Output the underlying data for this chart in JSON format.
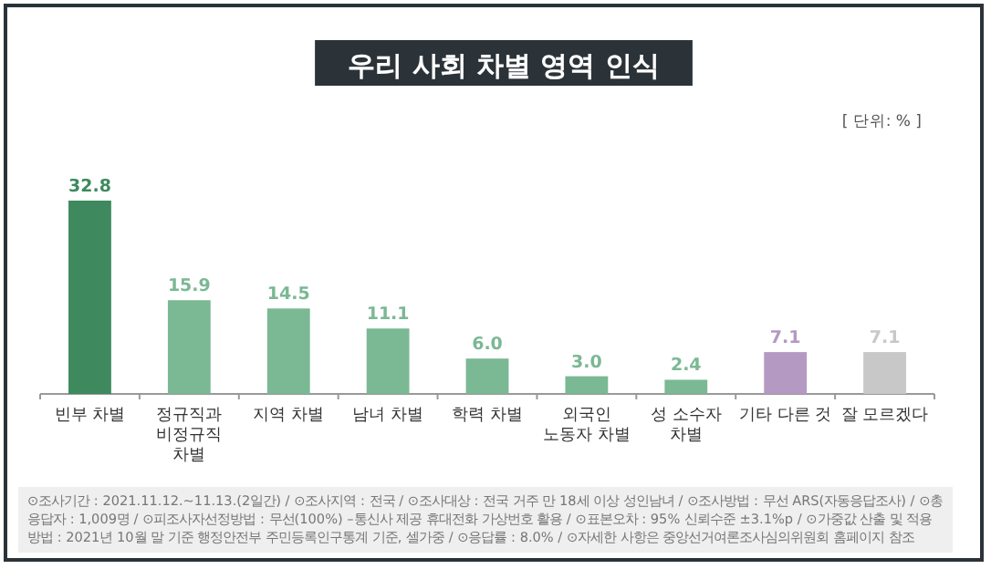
{
  "chart_data": {
    "type": "bar",
    "title": "우리 사회 차별 영역 인식",
    "categories": [
      "빈부 차별",
      "정규직과 비정규직 차별",
      "지역 차별",
      "남녀 차별",
      "학력 차별",
      "외국인 노동자 차별",
      "성 소수자 차별",
      "기타 다른 것",
      "잘 모르겠다"
    ],
    "values": [
      32.8,
      15.9,
      14.5,
      11.1,
      6.0,
      3.0,
      2.4,
      7.1,
      7.1
    ],
    "value_labels": [
      "32.8",
      "15.9",
      "14.5",
      "11.1",
      "6.0",
      "3.0",
      "2.4",
      "7.1",
      "7.1"
    ],
    "colors": [
      "#3e8a5e",
      "#7bb894",
      "#7bb894",
      "#7bb894",
      "#7bb894",
      "#7bb894",
      "#7bb894",
      "#b499c2",
      "#c8c8c8"
    ],
    "annotations": [
      "[ 단위: % ]",
      "⊙조사기간 : 2021.11.12.~11.13.(2일간) / ⊙조사지역 : 전국 / ⊙조사대상 : 전국 거주 만 18세 이상 성인남녀 / ⊙조사방법 : 무선 ARS(자동응답조사) / ⊙총응답자 : 1,009명 / ⊙피조사자선정방법 : 무선(100%) –통신사 제공 휴대전화 가상번호 활용 / ⊙표본오차 : 95% 신뢰수준 ±3.1%p / ⊙가중값 산출 및 적용방법 : 2021년 10월 말 기준 행정안전부 주민등록인구통계 기준, 셀가중 / ⊙응답률 : 8.0% / ⊙자세한 사항은 중앙선거여론조사심의위원회 홈페이지 참조"
    ]
  }
}
